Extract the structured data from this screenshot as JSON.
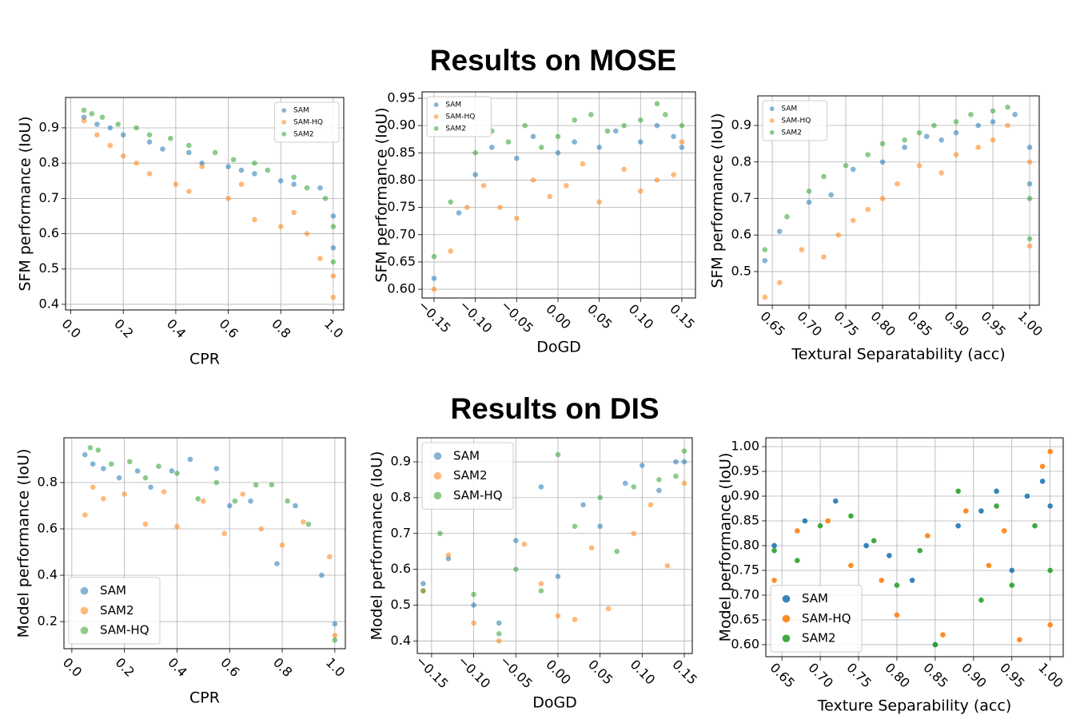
{
  "headings": [
    "Results on MOSE",
    "Results on DIS"
  ],
  "chart_data": [
    {
      "type": "scatter",
      "x_label": "CPR",
      "y_label": "SFM performance (IoU)",
      "xlim": [
        -0.02,
        1.04
      ],
      "ylim": [
        0.384,
        0.986
      ],
      "xticks": [
        {
          "value": 0,
          "label": "0.0"
        },
        0.2,
        0.4,
        0.6,
        0.8,
        {
          "value": 1,
          "label": "1.0"
        }
      ],
      "yticks": [
        0.4,
        0.5,
        0.6,
        0.7,
        0.8,
        0.9
      ],
      "grid": true,
      "legend": "upper right",
      "alpha": 0.55,
      "series": [
        {
          "name": "SAM",
          "color": "#1f77b4",
          "x": [
            0.05,
            0.1,
            0.15,
            0.2,
            0.3,
            0.35,
            0.45,
            0.5,
            0.6,
            0.65,
            0.7,
            0.8,
            0.85,
            0.95,
            1.0,
            1.0
          ],
          "y": [
            0.93,
            0.91,
            0.9,
            0.88,
            0.86,
            0.84,
            0.83,
            0.8,
            0.79,
            0.78,
            0.77,
            0.75,
            0.74,
            0.73,
            0.65,
            0.56
          ]
        },
        {
          "name": "SAM-HQ",
          "color": "#ff7f0e",
          "x": [
            0.05,
            0.1,
            0.15,
            0.2,
            0.25,
            0.3,
            0.4,
            0.45,
            0.5,
            0.6,
            0.65,
            0.7,
            0.8,
            0.85,
            0.9,
            0.95,
            1.0,
            1.0
          ],
          "y": [
            0.92,
            0.88,
            0.85,
            0.82,
            0.8,
            0.77,
            0.74,
            0.72,
            0.79,
            0.7,
            0.74,
            0.64,
            0.62,
            0.66,
            0.6,
            0.53,
            0.48,
            0.42
          ]
        },
        {
          "name": "SAM2",
          "color": "#2ca02c",
          "x": [
            0.05,
            0.08,
            0.12,
            0.18,
            0.25,
            0.3,
            0.38,
            0.45,
            0.55,
            0.62,
            0.7,
            0.75,
            0.85,
            0.9,
            0.97,
            1.0,
            1.0
          ],
          "y": [
            0.95,
            0.94,
            0.93,
            0.91,
            0.9,
            0.88,
            0.87,
            0.85,
            0.83,
            0.81,
            0.8,
            0.78,
            0.76,
            0.73,
            0.7,
            0.62,
            0.52
          ]
        }
      ]
    },
    {
      "type": "scatter",
      "x_label": "DoGD",
      "y_label": "SFM performance (IoU)",
      "xlim": [
        -0.1645,
        0.1665
      ],
      "ylim": [
        0.584,
        0.9617
      ],
      "xticks": [
        {
          "value": -0.15,
          "label": "−0.15"
        },
        {
          "value": -0.1,
          "label": "−0.10"
        },
        {
          "value": -0.05,
          "label": "−0.05"
        },
        {
          "value": 0,
          "label": "0.00"
        },
        0.05,
        {
          "value": 0.1,
          "label": "0.10"
        },
        0.15
      ],
      "yticks": [
        {
          "value": 0.6,
          "label": "0.60"
        },
        0.65,
        {
          "value": 0.7,
          "label": "0.70"
        },
        0.75,
        {
          "value": 0.8,
          "label": "0.80"
        },
        0.85,
        {
          "value": 0.9,
          "label": "0.90"
        },
        0.95
      ],
      "grid": true,
      "legend": "upper left",
      "alpha": 0.55,
      "series": [
        {
          "name": "SAM",
          "color": "#1f77b4",
          "x": [
            -0.15,
            -0.12,
            -0.1,
            -0.08,
            -0.05,
            -0.03,
            0.0,
            0.02,
            0.05,
            0.07,
            0.1,
            0.12,
            0.14,
            0.15
          ],
          "y": [
            0.62,
            0.74,
            0.81,
            0.86,
            0.84,
            0.88,
            0.85,
            0.87,
            0.86,
            0.89,
            0.87,
            0.9,
            0.88,
            0.86
          ]
        },
        {
          "name": "SAM-HQ",
          "color": "#ff7f0e",
          "x": [
            -0.15,
            -0.13,
            -0.11,
            -0.09,
            -0.07,
            -0.05,
            -0.03,
            -0.01,
            0.01,
            0.03,
            0.05,
            0.08,
            0.1,
            0.12,
            0.14,
            0.15
          ],
          "y": [
            0.6,
            0.67,
            0.75,
            0.79,
            0.75,
            0.73,
            0.8,
            0.77,
            0.79,
            0.83,
            0.76,
            0.82,
            0.78,
            0.8,
            0.81,
            0.87
          ]
        },
        {
          "name": "SAM2",
          "color": "#2ca02c",
          "x": [
            -0.15,
            -0.13,
            -0.1,
            -0.08,
            -0.06,
            -0.04,
            -0.02,
            0.0,
            0.02,
            0.04,
            0.06,
            0.08,
            0.1,
            0.12,
            0.13,
            0.15
          ],
          "y": [
            0.66,
            0.76,
            0.85,
            0.89,
            0.87,
            0.9,
            0.86,
            0.88,
            0.91,
            0.92,
            0.89,
            0.9,
            0.91,
            0.94,
            0.92,
            0.9
          ]
        }
      ]
    },
    {
      "type": "scatter",
      "x_label": "Textural Separatability (acc)",
      "y_label": "SFM performance (IoU)",
      "xlim": [
        0.6304,
        1.013
      ],
      "ylim": [
        0.408,
        0.981
      ],
      "xticks": [
        0.65,
        {
          "value": 0.7,
          "label": "0.70"
        },
        0.75,
        {
          "value": 0.8,
          "label": "0.80"
        },
        0.85,
        {
          "value": 0.9,
          "label": "0.90"
        },
        0.95,
        {
          "value": 1,
          "label": "1.00"
        }
      ],
      "yticks": [
        0.5,
        0.6,
        0.7,
        0.8,
        0.9
      ],
      "grid": true,
      "legend": "upper left",
      "alpha": 0.55,
      "series": [
        {
          "name": "SAM",
          "color": "#1f77b4",
          "x": [
            0.64,
            0.66,
            0.7,
            0.73,
            0.76,
            0.8,
            0.83,
            0.86,
            0.88,
            0.9,
            0.93,
            0.95,
            0.98,
            1.0,
            1.0
          ],
          "y": [
            0.53,
            0.61,
            0.69,
            0.71,
            0.78,
            0.8,
            0.84,
            0.87,
            0.86,
            0.88,
            0.9,
            0.91,
            0.93,
            0.84,
            0.74
          ]
        },
        {
          "name": "SAM-HQ",
          "color": "#ff7f0e",
          "x": [
            0.64,
            0.66,
            0.69,
            0.72,
            0.74,
            0.76,
            0.78,
            0.8,
            0.82,
            0.85,
            0.88,
            0.9,
            0.93,
            0.95,
            0.97,
            1.0,
            1.0
          ],
          "y": [
            0.43,
            0.47,
            0.56,
            0.54,
            0.6,
            0.64,
            0.67,
            0.7,
            0.74,
            0.79,
            0.77,
            0.82,
            0.84,
            0.86,
            0.9,
            0.8,
            0.57
          ]
        },
        {
          "name": "SAM2",
          "color": "#2ca02c",
          "x": [
            0.64,
            0.67,
            0.7,
            0.72,
            0.75,
            0.78,
            0.8,
            0.83,
            0.85,
            0.87,
            0.9,
            0.92,
            0.95,
            0.97,
            1.0,
            1.0
          ],
          "y": [
            0.56,
            0.65,
            0.72,
            0.76,
            0.79,
            0.82,
            0.85,
            0.86,
            0.88,
            0.9,
            0.91,
            0.93,
            0.94,
            0.95,
            0.7,
            0.59
          ]
        }
      ]
    },
    {
      "type": "scatter",
      "x_label": "CPR",
      "y_label": "Model performance (IoU)",
      "xlim": [
        -0.03,
        1.04
      ],
      "ylim": [
        0.083,
        0.993
      ],
      "xticks": [
        {
          "value": 0,
          "label": "0.0"
        },
        0.2,
        0.4,
        0.6,
        0.8,
        {
          "value": 1,
          "label": "1.0"
        }
      ],
      "yticks": [
        0.2,
        0.4,
        0.6,
        0.8
      ],
      "grid": true,
      "legend": "lower left",
      "alpha": 0.55,
      "series": [
        {
          "name": "SAM",
          "color": "#1f77b4",
          "x": [
            0.05,
            0.08,
            0.12,
            0.18,
            0.25,
            0.3,
            0.38,
            0.45,
            0.55,
            0.6,
            0.68,
            0.78,
            0.85,
            0.95,
            1.0
          ],
          "y": [
            0.92,
            0.88,
            0.86,
            0.82,
            0.85,
            0.78,
            0.85,
            0.9,
            0.86,
            0.7,
            0.72,
            0.45,
            0.7,
            0.4,
            0.19
          ]
        },
        {
          "name": "SAM2",
          "color": "#ff7f0e",
          "x": [
            0.05,
            0.08,
            0.12,
            0.2,
            0.28,
            0.35,
            0.4,
            0.5,
            0.58,
            0.65,
            0.72,
            0.8,
            0.88,
            0.98,
            1.0
          ],
          "y": [
            0.66,
            0.78,
            0.73,
            0.75,
            0.62,
            0.76,
            0.61,
            0.72,
            0.58,
            0.75,
            0.6,
            0.53,
            0.63,
            0.48,
            0.14
          ]
        },
        {
          "name": "SAM-HQ",
          "color": "#2ca02c",
          "x": [
            0.07,
            0.1,
            0.15,
            0.22,
            0.28,
            0.33,
            0.4,
            0.48,
            0.55,
            0.62,
            0.7,
            0.76,
            0.82,
            0.9,
            1.0
          ],
          "y": [
            0.95,
            0.94,
            0.88,
            0.89,
            0.82,
            0.87,
            0.84,
            0.73,
            0.8,
            0.72,
            0.79,
            0.79,
            0.72,
            0.62,
            0.12
          ]
        }
      ]
    },
    {
      "type": "scatter",
      "x_label": "DoGD",
      "y_label": "Model performance (IoU)",
      "xlim": [
        -0.167,
        0.1595
      ],
      "ylim": [
        0.365,
        0.967
      ],
      "xticks": [
        {
          "value": -0.15,
          "label": "−0.15"
        },
        {
          "value": -0.1,
          "label": "−0.10"
        },
        {
          "value": -0.05,
          "label": "−0.05"
        },
        {
          "value": 0,
          "label": "0.00"
        },
        0.05,
        {
          "value": 0.1,
          "label": "0.10"
        },
        0.15
      ],
      "yticks": [
        0.4,
        0.5,
        0.6,
        0.7,
        0.8,
        0.9
      ],
      "grid": true,
      "legend": "upper left",
      "alpha": 0.55,
      "series": [
        {
          "name": "SAM",
          "color": "#1f77b4",
          "x": [
            -0.16,
            -0.13,
            -0.1,
            -0.07,
            -0.05,
            -0.02,
            0.0,
            0.03,
            0.05,
            0.08,
            0.1,
            0.12,
            0.14,
            0.15
          ],
          "y": [
            0.56,
            0.63,
            0.5,
            0.45,
            0.68,
            0.83,
            0.58,
            0.78,
            0.72,
            0.84,
            0.89,
            0.82,
            0.9,
            0.9
          ]
        },
        {
          "name": "SAM2",
          "color": "#ff7f0e",
          "x": [
            -0.16,
            -0.13,
            -0.1,
            -0.07,
            -0.04,
            -0.02,
            0.0,
            0.02,
            0.04,
            0.06,
            0.09,
            0.11,
            0.13,
            0.15
          ],
          "y": [
            0.54,
            0.64,
            0.45,
            0.4,
            0.67,
            0.56,
            0.47,
            0.46,
            0.66,
            0.49,
            0.7,
            0.78,
            0.61,
            0.84
          ]
        },
        {
          "name": "SAM-HQ",
          "color": "#2ca02c",
          "x": [
            -0.16,
            -0.14,
            -0.1,
            -0.07,
            -0.05,
            -0.02,
            0.0,
            0.02,
            0.05,
            0.07,
            0.09,
            0.12,
            0.14,
            0.15
          ],
          "y": [
            0.54,
            0.7,
            0.53,
            0.42,
            0.6,
            0.54,
            0.92,
            0.72,
            0.8,
            0.65,
            0.83,
            0.85,
            0.86,
            0.93
          ]
        }
      ]
    },
    {
      "type": "scatter",
      "x_label": "Texture Separability (acc)",
      "y_label": "Model performance (IoU)",
      "xlim": [
        0.629,
        1.017
      ],
      "ylim": [
        0.5757,
        1.0178
      ],
      "xticks": [
        0.65,
        {
          "value": 0.7,
          "label": "0.70"
        },
        0.75,
        {
          "value": 0.8,
          "label": "0.80"
        },
        0.85,
        {
          "value": 0.9,
          "label": "0.90"
        },
        0.95,
        {
          "value": 1,
          "label": "1.00"
        }
      ],
      "yticks": [
        {
          "value": 0.6,
          "label": "0.60"
        },
        0.65,
        {
          "value": 0.7,
          "label": "0.70"
        },
        0.75,
        {
          "value": 0.8,
          "label": "0.80"
        },
        0.85,
        {
          "value": 0.9,
          "label": "0.90"
        },
        0.95,
        {
          "value": 1,
          "label": "1.00"
        }
      ],
      "grid": true,
      "legend": "lower left",
      "alpha": 0.9,
      "series": [
        {
          "name": "SAM",
          "color": "#1f77b4",
          "x": [
            0.64,
            0.68,
            0.72,
            0.76,
            0.79,
            0.82,
            0.85,
            0.88,
            0.91,
            0.93,
            0.95,
            0.97,
            0.99,
            1.0
          ],
          "y": [
            0.8,
            0.85,
            0.89,
            0.8,
            0.78,
            0.73,
            0.6,
            0.84,
            0.87,
            0.91,
            0.75,
            0.9,
            0.93,
            0.88
          ]
        },
        {
          "name": "SAM-HQ",
          "color": "#ff7f0e",
          "x": [
            0.64,
            0.67,
            0.71,
            0.74,
            0.78,
            0.8,
            0.84,
            0.86,
            0.89,
            0.92,
            0.94,
            0.96,
            0.99,
            1.0,
            1.0
          ],
          "y": [
            0.73,
            0.83,
            0.85,
            0.76,
            0.73,
            0.66,
            0.82,
            0.62,
            0.87,
            0.76,
            0.83,
            0.61,
            0.96,
            0.99,
            0.64
          ]
        },
        {
          "name": "SAM2",
          "color": "#2ca02c",
          "x": [
            0.64,
            0.67,
            0.7,
            0.74,
            0.77,
            0.8,
            0.83,
            0.85,
            0.88,
            0.91,
            0.93,
            0.95,
            0.98,
            1.0
          ],
          "y": [
            0.79,
            0.77,
            0.84,
            0.86,
            0.81,
            0.72,
            0.79,
            0.6,
            0.91,
            0.69,
            0.88,
            0.72,
            0.84,
            0.75
          ]
        }
      ]
    }
  ]
}
